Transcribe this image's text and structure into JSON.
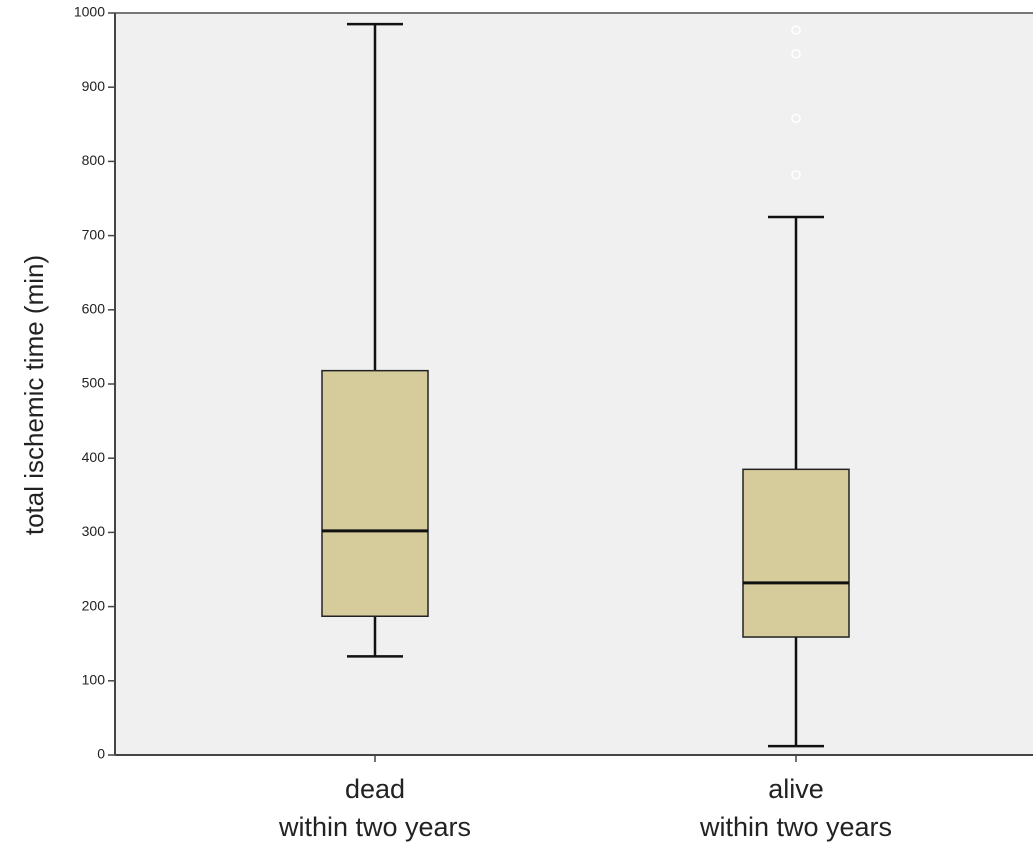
{
  "chart_data": {
    "type": "box",
    "y_label": "total ischemic time (min)",
    "categories": [
      [
        "dead",
        "within two years"
      ],
      [
        "alive",
        "within two years"
      ]
    ],
    "boxes": [
      {
        "min": 133,
        "q1": 187,
        "median": 302,
        "q3": 518,
        "max": 985,
        "outliers": []
      },
      {
        "min": 12,
        "q1": 159,
        "median": 232,
        "q3": 385,
        "max": 725,
        "outliers": [
          977,
          945,
          858,
          782
        ]
      }
    ],
    "color": "#d6cb9a",
    "ylim": [
      0,
      1000
    ],
    "yticks": [
      0,
      100,
      200,
      300,
      400,
      500,
      600,
      700,
      800,
      900,
      1000
    ]
  }
}
